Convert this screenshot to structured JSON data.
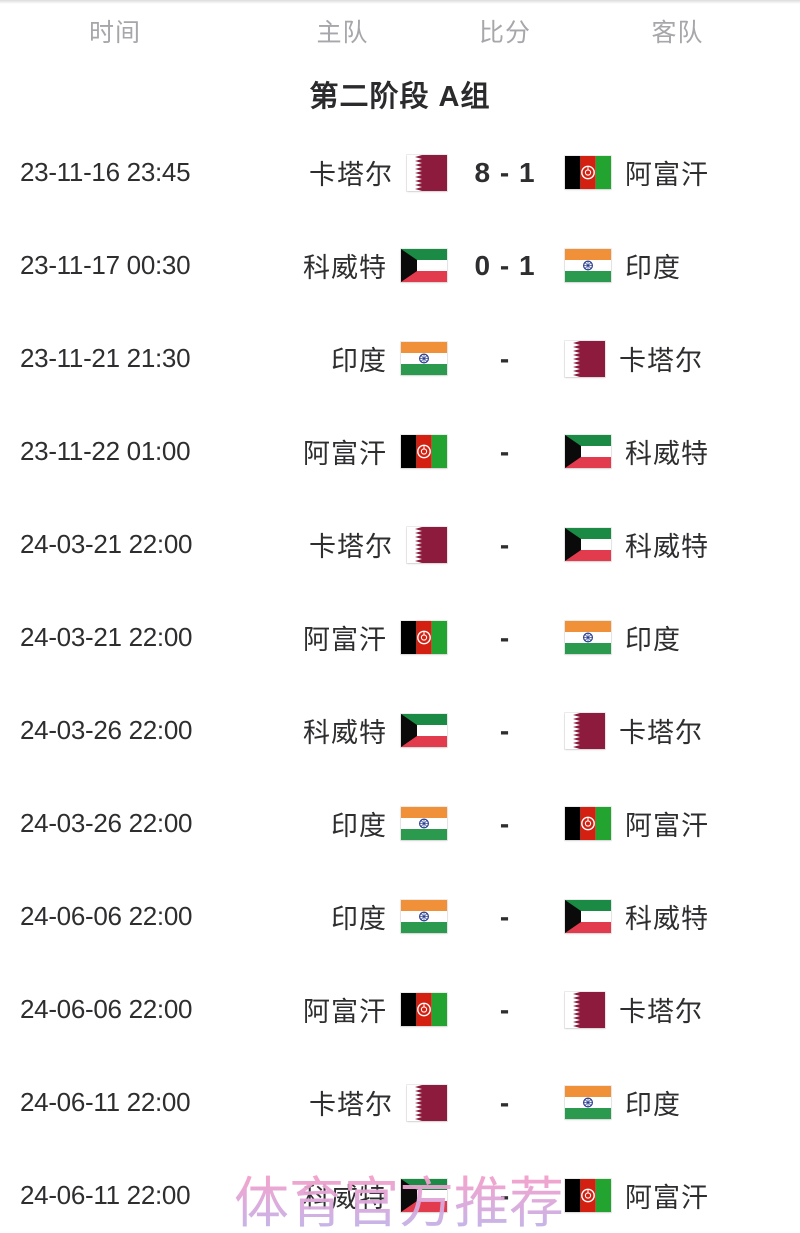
{
  "page": {
    "background": "#ffffff",
    "watermark_text": "体育官方推荐",
    "watermark_color_top": "#f59fc8",
    "watermark_color_bottom": "#b9b5ec"
  },
  "table": {
    "headers": [
      {
        "id": "time",
        "label": "时间"
      },
      {
        "id": "home",
        "label": "主队"
      },
      {
        "id": "score",
        "label": "比分"
      },
      {
        "id": "away",
        "label": "客队"
      }
    ],
    "group_title": "第二阶段 A组",
    "matches": [
      {
        "time": "23-11-16 23:45",
        "home": "卡塔尔",
        "home_flag": "qatar",
        "score": "8 - 1",
        "away": "阿富汗",
        "away_flag": "afghanistan"
      },
      {
        "time": "23-11-17 00:30",
        "home": "科威特",
        "home_flag": "kuwait",
        "score": "0 - 1",
        "away": "印度",
        "away_flag": "india"
      },
      {
        "time": "23-11-21 21:30",
        "home": "印度",
        "home_flag": "india",
        "score": "-",
        "away": "卡塔尔",
        "away_flag": "qatar"
      },
      {
        "time": "23-11-22 01:00",
        "home": "阿富汗",
        "home_flag": "afghanistan",
        "score": "-",
        "away": "科威特",
        "away_flag": "kuwait"
      },
      {
        "time": "24-03-21 22:00",
        "home": "卡塔尔",
        "home_flag": "qatar",
        "score": "-",
        "away": "科威特",
        "away_flag": "kuwait"
      },
      {
        "time": "24-03-21 22:00",
        "home": "阿富汗",
        "home_flag": "afghanistan",
        "score": "-",
        "away": "印度",
        "away_flag": "india"
      },
      {
        "time": "24-03-26 22:00",
        "home": "科威特",
        "home_flag": "kuwait",
        "score": "-",
        "away": "卡塔尔",
        "away_flag": "qatar"
      },
      {
        "time": "24-03-26 22:00",
        "home": "印度",
        "home_flag": "india",
        "score": "-",
        "away": "阿富汗",
        "away_flag": "afghanistan"
      },
      {
        "time": "24-06-06 22:00",
        "home": "印度",
        "home_flag": "india",
        "score": "-",
        "away": "科威特",
        "away_flag": "kuwait"
      },
      {
        "time": "24-06-06 22:00",
        "home": "阿富汗",
        "home_flag": "afghanistan",
        "score": "-",
        "away": "卡塔尔",
        "away_flag": "qatar"
      },
      {
        "time": "24-06-11 22:00",
        "home": "卡塔尔",
        "home_flag": "qatar",
        "score": "-",
        "away": "印度",
        "away_flag": "india"
      },
      {
        "time": "24-06-11 22:00",
        "home": "科威特",
        "home_flag": "kuwait",
        "score": "-",
        "away": "阿富汗",
        "away_flag": "afghanistan"
      }
    ]
  },
  "flag_colors": {
    "qatar": {
      "maroon": "#8d1b3d",
      "white": "#ffffff"
    },
    "afghanistan": {
      "black": "#000000",
      "red": "#d32011",
      "green": "#23a32f",
      "emblem": "#ffffff"
    },
    "kuwait": {
      "green": "#1b8a45",
      "white": "#ffffff",
      "red": "#e23b4e",
      "black": "#0a0a0a"
    },
    "india": {
      "saffron": "#f0913a",
      "white": "#ffffff",
      "green": "#2b9a4e",
      "navy": "#2b3f90"
    }
  }
}
